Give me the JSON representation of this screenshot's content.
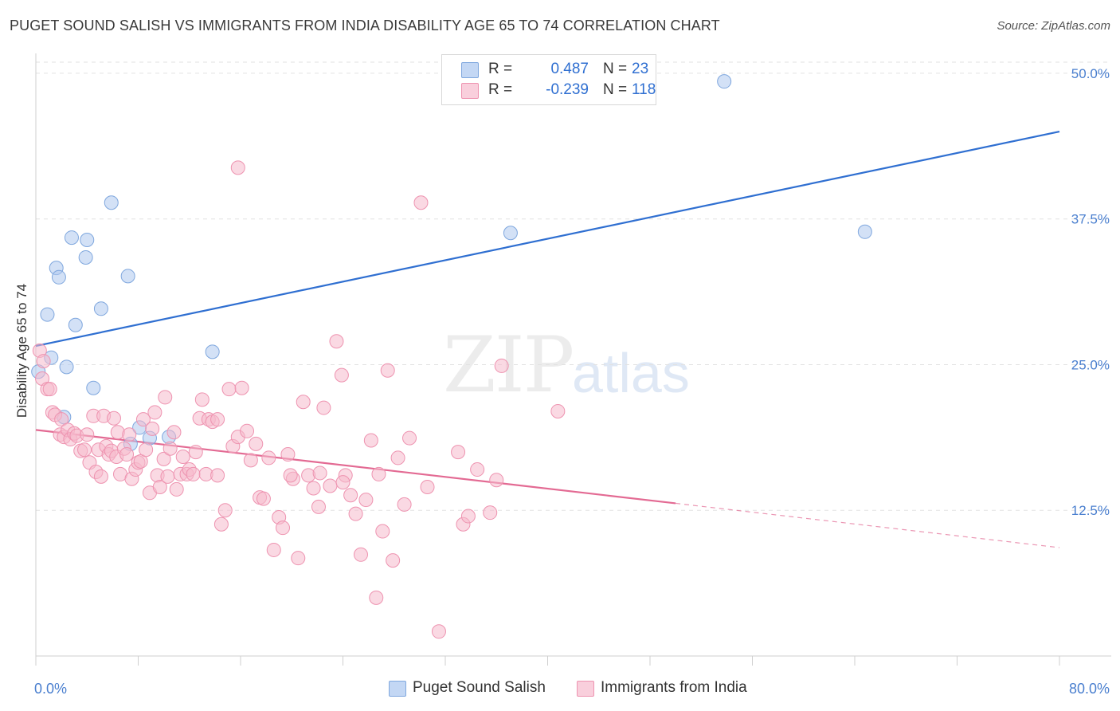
{
  "header": {
    "title": "PUGET SOUND SALISH VS IMMIGRANTS FROM INDIA DISABILITY AGE 65 TO 74 CORRELATION CHART",
    "source": "Source: ZipAtlas.com"
  },
  "watermark": {
    "zip": "ZIP",
    "atlas": "atlas"
  },
  "stats": {
    "rows": [
      {
        "r_label": "R =",
        "r_value": "0.487",
        "n_label": "N =",
        "n_value": "23",
        "color": "#aec8ef"
      },
      {
        "r_label": "R =",
        "r_value": "-0.239",
        "n_label": "N =",
        "n_value": "118",
        "color": "#f6b9cc"
      }
    ]
  },
  "legend": {
    "items": [
      {
        "label": "Puget Sound Salish",
        "color": "#aec8ef"
      },
      {
        "label": "Immigrants from India",
        "color": "#f6b9cc"
      }
    ]
  },
  "chart_data": {
    "type": "scatter",
    "title": "PUGET SOUND SALISH VS IMMIGRANTS FROM INDIA DISABILITY AGE 65 TO 74 CORRELATION CHART",
    "xlabel": "",
    "ylabel": "Disability Age 65 to 74",
    "xlim": [
      0,
      80
    ],
    "ylim": [
      0,
      51.5
    ],
    "x_tick_labels": [
      "0.0%",
      "80.0%"
    ],
    "y_ticks": [
      12.5,
      25.0,
      37.5,
      50.0
    ],
    "y_tick_labels": [
      "12.5%",
      "25.0%",
      "37.5%",
      "50.0%"
    ],
    "grid": "horizontal dashed",
    "legend_position": "bottom-center",
    "series": [
      {
        "name": "Puget Sound Salish",
        "color": "#aec8ef",
        "stroke": "#7fa7de",
        "line_color": "#2f6fd1",
        "trend": {
          "x0": 0,
          "y0": 26.6,
          "x1": 80,
          "y1": 45.0
        },
        "points": [
          [
            0.2,
            24.4
          ],
          [
            0.9,
            29.3
          ],
          [
            1.2,
            25.6
          ],
          [
            1.6,
            33.3
          ],
          [
            1.8,
            32.5
          ],
          [
            2.2,
            20.5
          ],
          [
            2.4,
            24.8
          ],
          [
            2.8,
            35.9
          ],
          [
            3.1,
            28.4
          ],
          [
            4.0,
            35.7
          ],
          [
            3.9,
            34.2
          ],
          [
            4.5,
            23.0
          ],
          [
            5.1,
            29.8
          ],
          [
            5.9,
            38.9
          ],
          [
            7.2,
            32.6
          ],
          [
            7.4,
            18.2
          ],
          [
            8.1,
            19.6
          ],
          [
            8.9,
            18.7
          ],
          [
            10.4,
            18.8
          ],
          [
            13.8,
            26.1
          ],
          [
            37.1,
            36.3
          ],
          [
            53.8,
            49.3
          ],
          [
            64.8,
            36.4
          ]
        ]
      },
      {
        "name": "Immigrants from India",
        "color": "#f6b9cc",
        "stroke": "#ee93b0",
        "line_color": "#e36a93",
        "trend": {
          "x0": 0,
          "y0": 19.4,
          "x1": 50.0,
          "y1": 13.1
        },
        "trend_dashed": {
          "x0": 50.0,
          "y0": 13.1,
          "x1": 80,
          "y1": 9.3
        },
        "points": [
          [
            0.3,
            26.2
          ],
          [
            0.5,
            23.8
          ],
          [
            0.6,
            25.3
          ],
          [
            0.9,
            22.9
          ],
          [
            1.1,
            22.9
          ],
          [
            1.3,
            20.9
          ],
          [
            1.5,
            20.7
          ],
          [
            1.9,
            19.0
          ],
          [
            2.0,
            20.3
          ],
          [
            2.2,
            18.8
          ],
          [
            2.5,
            19.4
          ],
          [
            2.7,
            18.6
          ],
          [
            3.0,
            19.1
          ],
          [
            3.2,
            18.9
          ],
          [
            3.5,
            17.6
          ],
          [
            3.8,
            17.7
          ],
          [
            4.0,
            19.0
          ],
          [
            4.2,
            16.6
          ],
          [
            4.5,
            20.6
          ],
          [
            4.7,
            15.8
          ],
          [
            4.9,
            17.7
          ],
          [
            5.1,
            15.4
          ],
          [
            5.3,
            20.6
          ],
          [
            5.5,
            18.0
          ],
          [
            5.7,
            17.3
          ],
          [
            5.9,
            17.6
          ],
          [
            6.1,
            20.4
          ],
          [
            6.3,
            17.1
          ],
          [
            6.4,
            19.2
          ],
          [
            6.6,
            15.6
          ],
          [
            6.9,
            17.8
          ],
          [
            7.1,
            17.3
          ],
          [
            7.3,
            19.0
          ],
          [
            7.5,
            15.2
          ],
          [
            7.8,
            16.0
          ],
          [
            8.0,
            16.6
          ],
          [
            8.2,
            16.7
          ],
          [
            8.4,
            20.3
          ],
          [
            8.6,
            17.7
          ],
          [
            8.9,
            14.0
          ],
          [
            9.1,
            19.5
          ],
          [
            9.3,
            20.9
          ],
          [
            9.5,
            15.5
          ],
          [
            9.7,
            14.5
          ],
          [
            10.0,
            16.9
          ],
          [
            10.1,
            22.2
          ],
          [
            10.3,
            15.4
          ],
          [
            10.5,
            17.8
          ],
          [
            10.8,
            19.2
          ],
          [
            11.0,
            14.3
          ],
          [
            11.3,
            15.6
          ],
          [
            11.5,
            17.1
          ],
          [
            11.8,
            15.6
          ],
          [
            12.0,
            16.0
          ],
          [
            12.3,
            15.6
          ],
          [
            12.5,
            17.5
          ],
          [
            12.8,
            20.4
          ],
          [
            13.0,
            22.0
          ],
          [
            13.3,
            15.6
          ],
          [
            13.5,
            20.3
          ],
          [
            13.8,
            20.1
          ],
          [
            14.2,
            15.5
          ],
          [
            14.5,
            11.3
          ],
          [
            14.8,
            12.5
          ],
          [
            15.1,
            22.9
          ],
          [
            15.4,
            18.0
          ],
          [
            15.8,
            18.8
          ],
          [
            16.1,
            23.0
          ],
          [
            16.5,
            19.3
          ],
          [
            16.8,
            16.8
          ],
          [
            17.2,
            18.2
          ],
          [
            17.5,
            13.6
          ],
          [
            17.8,
            13.5
          ],
          [
            18.2,
            17.0
          ],
          [
            18.6,
            9.1
          ],
          [
            19.0,
            11.9
          ],
          [
            19.3,
            11.0
          ],
          [
            19.7,
            17.3
          ],
          [
            20.1,
            15.2
          ],
          [
            20.5,
            8.4
          ],
          [
            20.9,
            21.8
          ],
          [
            21.3,
            15.5
          ],
          [
            21.7,
            14.4
          ],
          [
            22.1,
            12.8
          ],
          [
            22.5,
            21.3
          ],
          [
            23.0,
            14.6
          ],
          [
            23.5,
            27.0
          ],
          [
            23.9,
            24.1
          ],
          [
            24.2,
            15.5
          ],
          [
            24.6,
            13.8
          ],
          [
            25.0,
            12.2
          ],
          [
            25.4,
            8.7
          ],
          [
            25.8,
            13.4
          ],
          [
            26.2,
            18.5
          ],
          [
            26.6,
            5.0
          ],
          [
            27.1,
            10.7
          ],
          [
            27.5,
            24.5
          ],
          [
            27.9,
            8.2
          ],
          [
            28.3,
            17.0
          ],
          [
            28.8,
            13.0
          ],
          [
            29.2,
            18.7
          ],
          [
            30.1,
            38.9
          ],
          [
            31.5,
            2.1
          ],
          [
            33.0,
            17.5
          ],
          [
            33.4,
            11.3
          ],
          [
            33.8,
            12.0
          ],
          [
            34.5,
            16.0
          ],
          [
            35.5,
            12.3
          ],
          [
            36.0,
            15.1
          ],
          [
            36.4,
            24.9
          ],
          [
            40.8,
            21.0
          ],
          [
            15.8,
            41.9
          ],
          [
            14.2,
            20.3
          ],
          [
            19.9,
            15.5
          ],
          [
            22.2,
            15.7
          ],
          [
            26.8,
            15.6
          ],
          [
            24.0,
            14.9
          ],
          [
            30.6,
            14.5
          ]
        ]
      }
    ]
  }
}
